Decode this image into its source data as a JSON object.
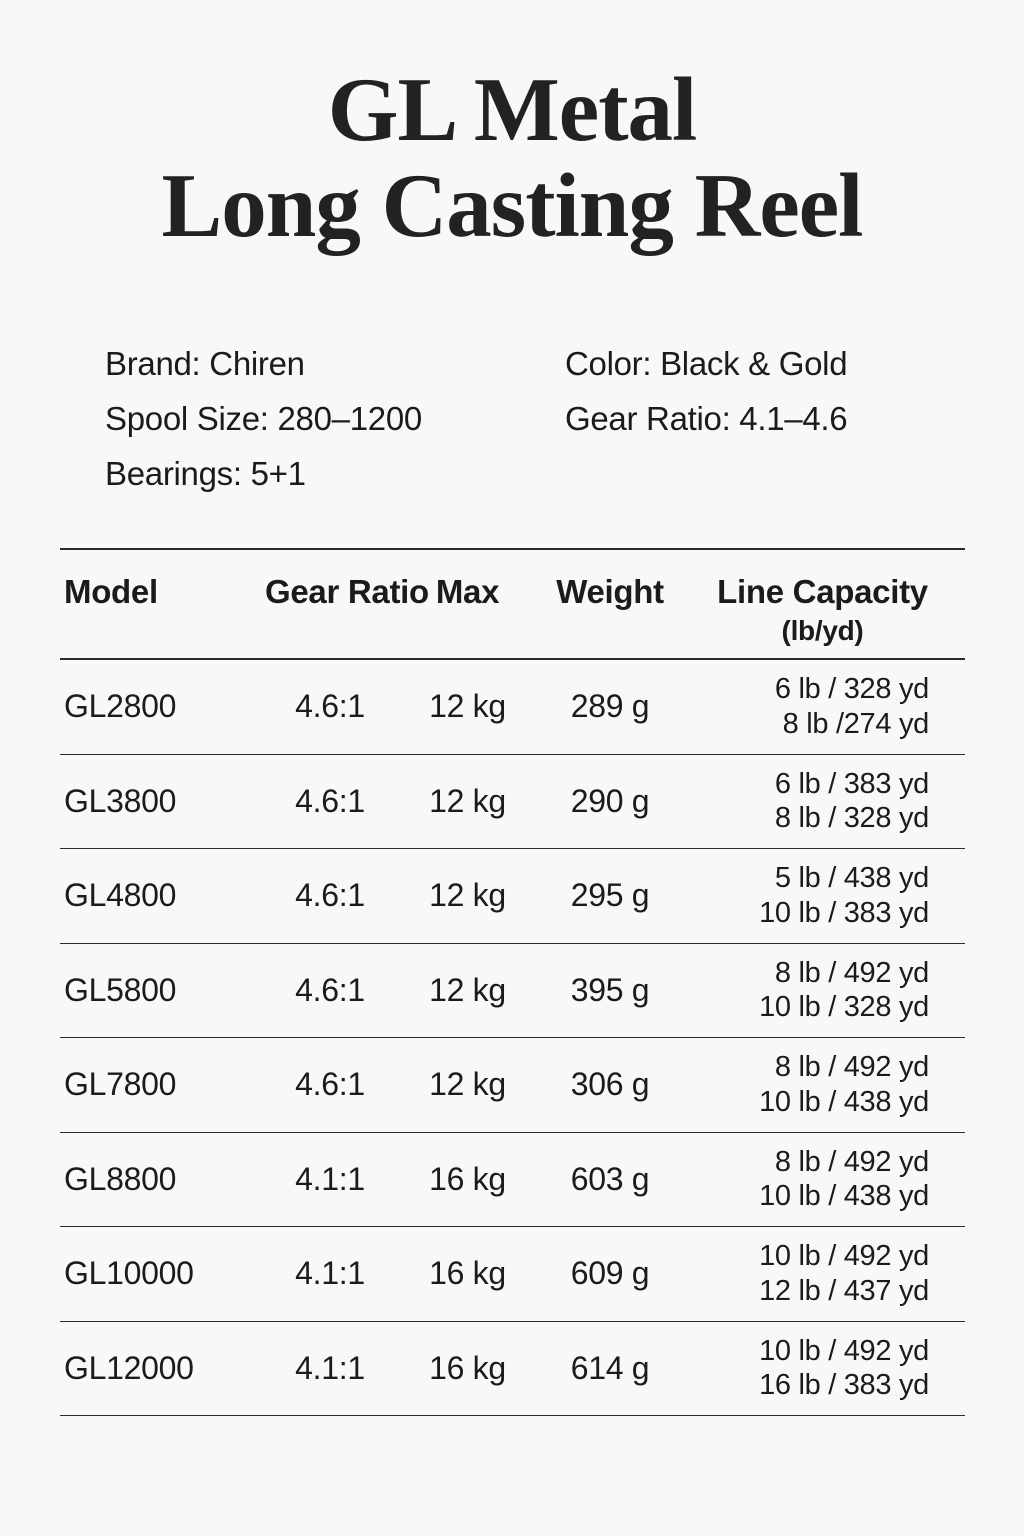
{
  "title": {
    "line1": "GL Metal",
    "line2": "Long Casting Reel"
  },
  "specs": {
    "brand": "Brand: Chiren",
    "spool_size": "Spool Size: 280–1200",
    "bearings": "Bearings: 5+1",
    "color": "Color: Black & Gold",
    "gear_ratio": "Gear Ratio: 4.1–4.6"
  },
  "table": {
    "headers": {
      "model": "Model",
      "gear_ratio": "Gear Ratio",
      "max": "Max",
      "weight": "Weight",
      "line_capacity": "Line Capacity",
      "line_capacity_sub": "(lb/yd)"
    },
    "rows": [
      {
        "model": "GL2800",
        "gear_ratio": "4.6:1",
        "max": "12 kg",
        "weight": "289 g",
        "capacity": [
          "6 lb / 328 yd",
          "8 lb /274 yd"
        ]
      },
      {
        "model": "GL3800",
        "gear_ratio": "4.6:1",
        "max": "12 kg",
        "weight": "290 g",
        "capacity": [
          "6 lb / 383 yd",
          "8 lb / 328 yd"
        ]
      },
      {
        "model": "GL4800",
        "gear_ratio": "4.6:1",
        "max": "12 kg",
        "weight": "295 g",
        "capacity": [
          "5 lb / 438 yd",
          "10 lb / 383 yd"
        ]
      },
      {
        "model": "GL5800",
        "gear_ratio": "4.6:1",
        "max": "12 kg",
        "weight": "395 g",
        "capacity": [
          "8 lb / 492 yd",
          "10 lb / 328 yd"
        ]
      },
      {
        "model": "GL7800",
        "gear_ratio": "4.6:1",
        "max": "12 kg",
        "weight": "306 g",
        "capacity": [
          "8 lb / 492 yd",
          "10 lb / 438 yd"
        ]
      },
      {
        "model": "GL8800",
        "gear_ratio": "4.1:1",
        "max": "16 kg",
        "weight": "603 g",
        "capacity": [
          "8 lb / 492 yd",
          "10 lb / 438 yd"
        ]
      },
      {
        "model": "GL10000",
        "gear_ratio": "4.1:1",
        "max": "16 kg",
        "weight": "609 g",
        "capacity": [
          "10 lb / 492 yd",
          "12 lb / 437 yd"
        ]
      },
      {
        "model": "GL12000",
        "gear_ratio": "4.1:1",
        "max": "16 kg",
        "weight": "614 g",
        "capacity": [
          "10 lb / 492 yd",
          "16 lb / 383 yd"
        ]
      }
    ]
  },
  "colors": {
    "background": "#f9f8f7",
    "text": "#1b1b1b",
    "rule": "#2b2b2b"
  }
}
